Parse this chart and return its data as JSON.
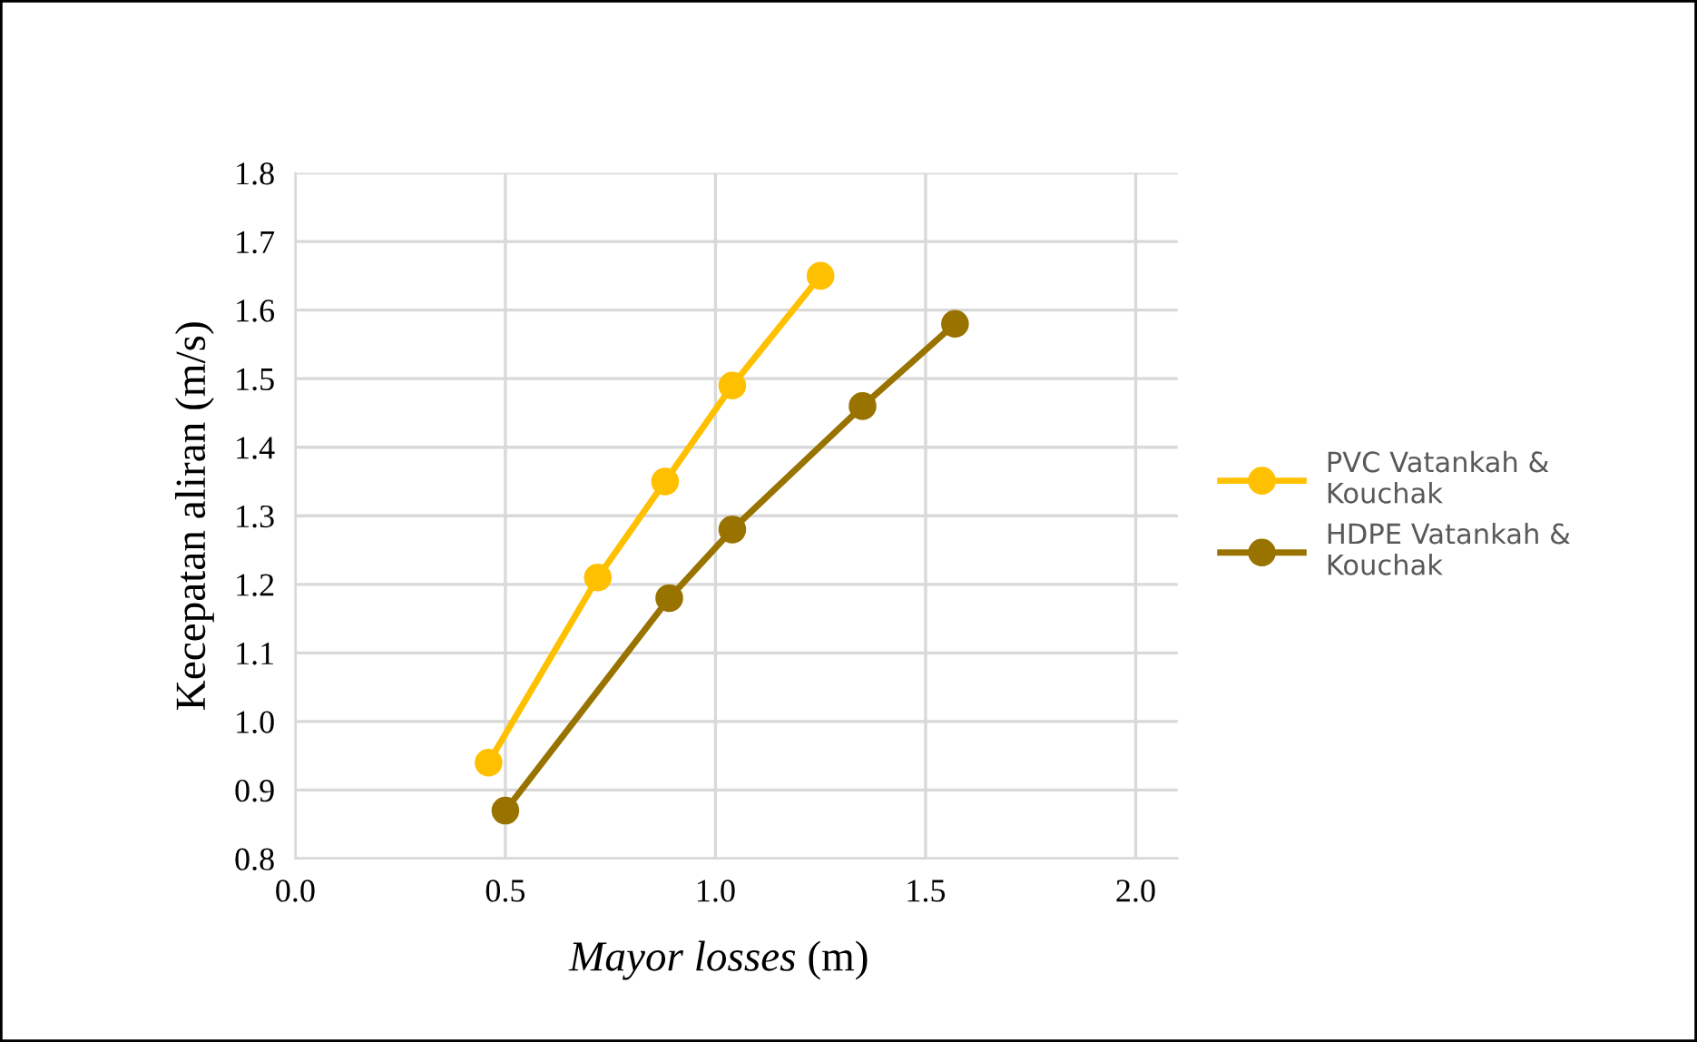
{
  "chart_data": {
    "type": "line",
    "xlabel": "Mayor losses (m)",
    "ylabel": "Kecepatan aliran (m/s)",
    "xlim": [
      0,
      2.1
    ],
    "xticks": [
      {
        "value": 0,
        "label": "0.0"
      },
      0.5,
      {
        "value": 1,
        "label": "1.0"
      },
      1.5,
      {
        "value": 2,
        "label": "2.0"
      }
    ],
    "ylim": [
      0.8,
      1.8
    ],
    "yticks": [
      0.8,
      0.9,
      {
        "value": 1,
        "label": "1.0"
      },
      1.1,
      1.2,
      1.3,
      1.4,
      1.5,
      1.6,
      1.7,
      1.8
    ],
    "grid": true,
    "legend": "right",
    "marker": "circle",
    "line_style": "solid",
    "series": [
      {
        "name": "PVC Vatankah & Kouchak",
        "color": "#ffc000",
        "x": [
          0.46,
          0.72,
          0.88,
          1.04,
          1.25
        ],
        "values": [
          0.94,
          1.21,
          1.35,
          1.49,
          1.65
        ]
      },
      {
        "name": "HDPE Vatankah & Kouchak",
        "color": "#997300",
        "x": [
          0.5,
          0.89,
          1.04,
          1.35,
          1.57
        ],
        "values": [
          0.87,
          1.18,
          1.28,
          1.46,
          1.58
        ]
      }
    ]
  }
}
